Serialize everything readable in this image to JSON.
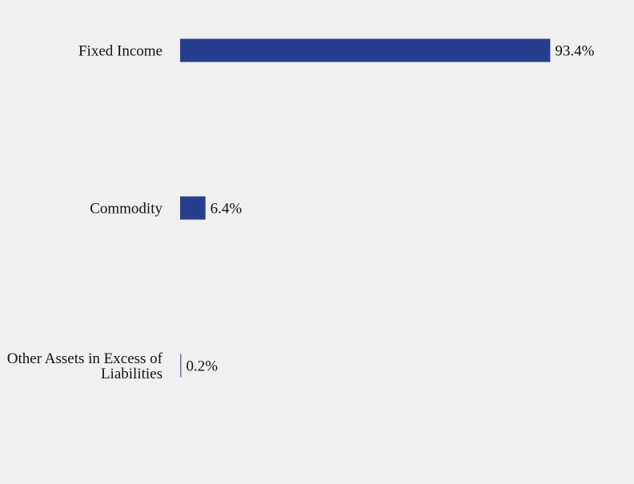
{
  "chart_data": {
    "type": "bar",
    "orientation": "horizontal",
    "categories": [
      [
        "Fixed Income"
      ],
      [
        "Commodity"
      ],
      [
        "Other Assets in Excess of",
        "Liabilities"
      ]
    ],
    "values": [
      93.4,
      6.4,
      0.2
    ],
    "value_labels": [
      "93.4%",
      "6.4%",
      "0.2%"
    ],
    "unit": "%",
    "title": "",
    "xlabel": "",
    "ylabel": "",
    "xlim": [
      0,
      100
    ],
    "grid": false,
    "legend": "none",
    "colors": {
      "bar": "#253f8e",
      "background": "#f0f0f0",
      "text": "#111111"
    }
  }
}
